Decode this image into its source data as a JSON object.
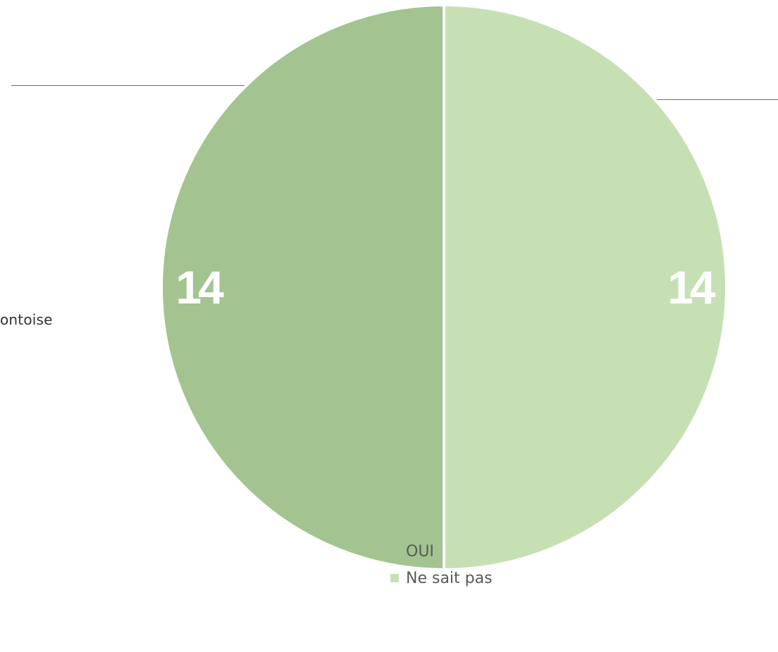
{
  "side_text": "ontoise",
  "chart_data": {
    "type": "pie",
    "categories": [
      "OUI",
      "Ne sait pas"
    ],
    "values": [
      14,
      14
    ],
    "colors": [
      "#a3c490",
      "#c6e0b4"
    ],
    "data_labels": [
      "14",
      "14"
    ],
    "legend": {
      "placement": "bottom",
      "entries": [
        "OUI",
        "Ne sait pas"
      ]
    },
    "start_angle": "12 o'clock",
    "direction": "counterclockwise for OUI (left half), clockwise for Ne sait pas (right half)"
  }
}
